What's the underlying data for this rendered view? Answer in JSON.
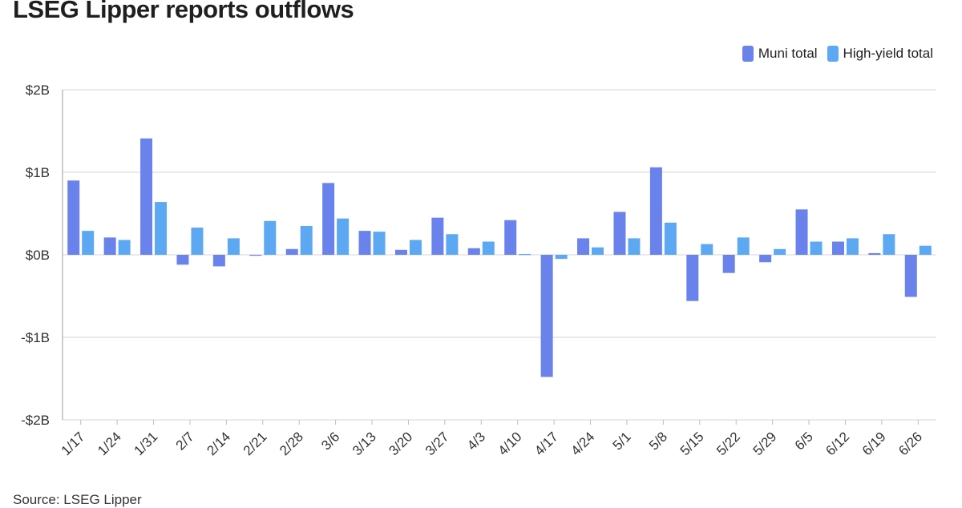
{
  "title": "LSEG Lipper reports outflows",
  "source": "Source: LSEG Lipper",
  "colors": {
    "muni": "#6a82ec",
    "high_yield": "#5da8f2",
    "grid": "#e4e4e4",
    "axis": "#bdbdbd"
  },
  "legend": {
    "items": [
      {
        "label": "Muni total",
        "color": "#6a82ec"
      },
      {
        "label": "High-yield total",
        "color": "#5da8f2"
      }
    ],
    "placement": "top-right"
  },
  "chart_data": {
    "type": "bar",
    "categories": [
      "1/17",
      "1/24",
      "1/31",
      "2/7",
      "2/14",
      "2/21",
      "2/28",
      "3/6",
      "3/13",
      "3/20",
      "3/27",
      "4/3",
      "4/10",
      "4/17",
      "4/24",
      "5/1",
      "5/8",
      "5/15",
      "5/22",
      "5/29",
      "6/5",
      "6/12",
      "6/19",
      "6/26"
    ],
    "series": [
      {
        "name": "Muni total",
        "values": [
          0.9,
          0.21,
          1.41,
          -0.12,
          -0.14,
          -0.01,
          0.07,
          0.87,
          0.29,
          0.06,
          0.45,
          0.08,
          0.42,
          -1.48,
          0.2,
          0.52,
          1.06,
          -0.56,
          -0.22,
          -0.09,
          0.55,
          0.16,
          0.02,
          -0.51
        ]
      },
      {
        "name": "High-yield total",
        "values": [
          0.29,
          0.18,
          0.64,
          0.33,
          0.2,
          0.41,
          0.35,
          0.44,
          0.28,
          0.18,
          0.25,
          0.16,
          0.01,
          -0.05,
          0.09,
          0.2,
          0.39,
          0.13,
          0.21,
          0.07,
          0.16,
          0.2,
          0.25,
          0.11
        ]
      }
    ],
    "ylim": [
      -2,
      2
    ],
    "yticks": [
      2,
      1,
      0,
      -1,
      -2
    ],
    "ytick_labels": [
      "$2B",
      "$1B",
      "$0B",
      "-$1B",
      "-$2B"
    ],
    "ylabel": "",
    "xlabel": "",
    "grid": true
  }
}
